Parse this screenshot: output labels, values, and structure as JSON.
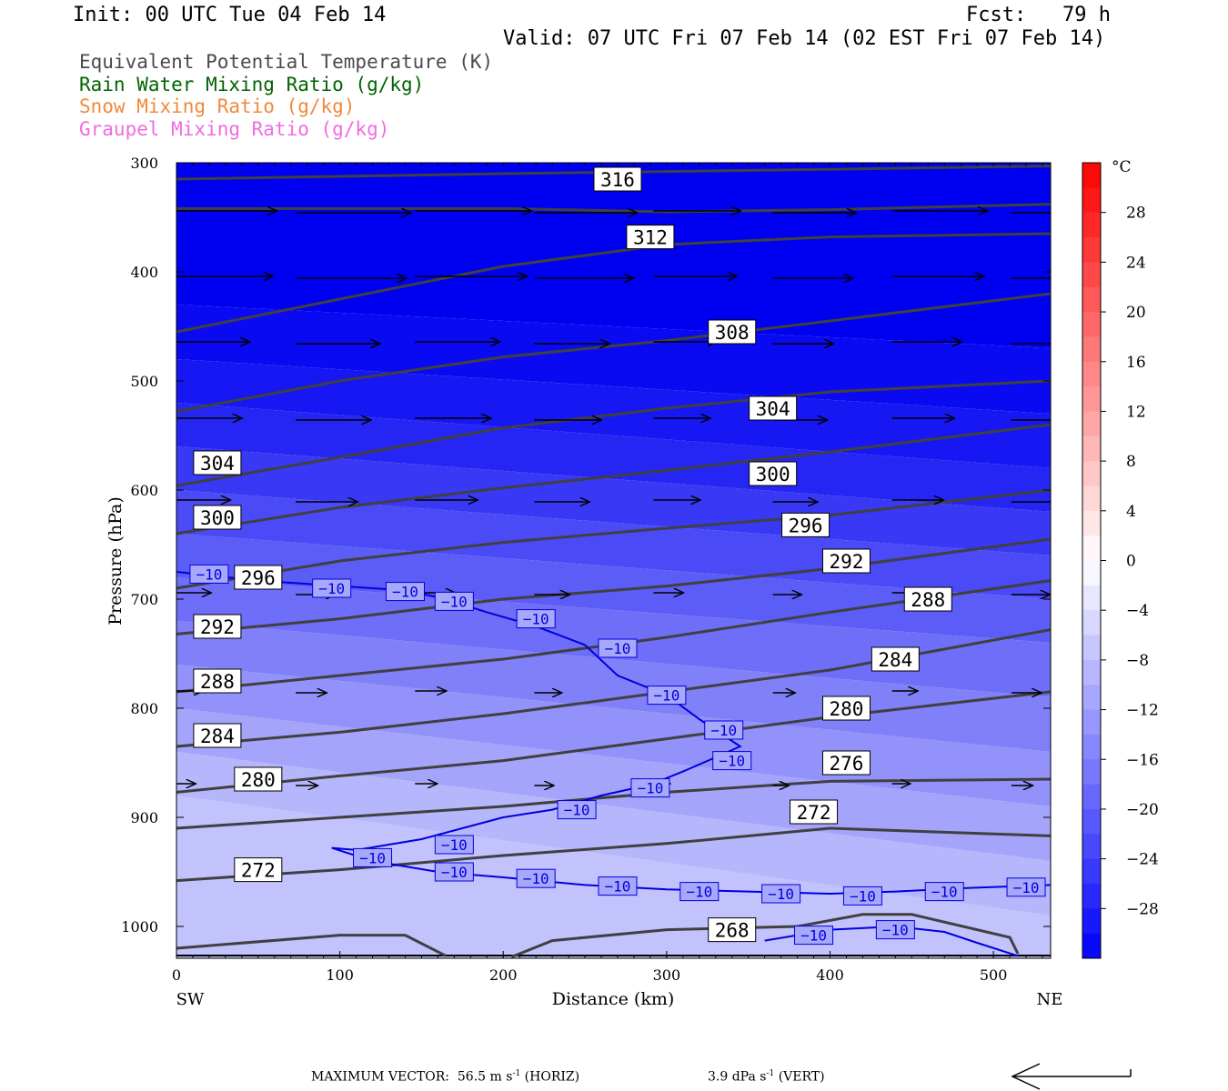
{
  "header": {
    "init": "Init: 00 UTC Tue 04 Feb 14",
    "fcst": "Fcst:   79 h",
    "valid": "Valid: 07 UTC Fri 07 Feb 14 (02 EST Fri 07 Feb 14)"
  },
  "legend": {
    "theta_e": "Equivalent Potential Temperature (K)",
    "rain": "Rain Water Mixing Ratio (g/kg)",
    "snow": "Snow Mixing Ratio (g/kg)",
    "graupel": "Graupel Mixing Ratio (g/kg)"
  },
  "footer": {
    "max_vector_label": "MAXIMUM VECTOR:",
    "horiz_value": "56.5",
    "horiz_unit": "m s",
    "horiz_exp": "-1",
    "horiz_tag": "(HORIZ)",
    "vert_value": "3.9",
    "vert_unit": "dPa s",
    "vert_exp": "-1",
    "vert_tag": "(VERT)"
  },
  "colors": {
    "theta_e_contour": "#404040",
    "isotherm": "#0000e0",
    "cold_fill": "#0000f0",
    "warm_fill": "#ff0000"
  },
  "chart_data": {
    "type": "cross-section",
    "xlabel": "Distance (km)",
    "ylabel": "Pressure (hPa)",
    "x_left_label": "SW",
    "x_right_label": "NE",
    "xlim": [
      0,
      535
    ],
    "ylim": [
      1030,
      300
    ],
    "x_ticks": [
      0,
      100,
      200,
      300,
      400,
      500
    ],
    "y_ticks": [
      300,
      400,
      500,
      600,
      700,
      800,
      900,
      1000
    ],
    "colorbar": {
      "unit": "°C",
      "tick_labels": [
        "28",
        "24",
        "20",
        "16",
        "12",
        "8",
        "4",
        "0",
        "−4",
        "−8",
        "−12",
        "−16",
        "−20",
        "−24",
        "−28"
      ],
      "min": -32,
      "max": 32,
      "interval": 2
    },
    "theta_e_contours": [
      {
        "value": 316,
        "points": [
          [
            0,
            315
          ],
          [
            200,
            310
          ],
          [
            400,
            306
          ],
          [
            535,
            303
          ]
        ]
      },
      {
        "value": 312,
        "points": [
          [
            0,
            342
          ],
          [
            100,
            342
          ],
          [
            200,
            342
          ],
          [
            300,
            345
          ],
          [
            400,
            343
          ],
          [
            535,
            338
          ]
        ]
      },
      {
        "value": 312,
        "points": [
          [
            0,
            455
          ],
          [
            100,
            425
          ],
          [
            200,
            395
          ],
          [
            300,
            375
          ],
          [
            400,
            368
          ],
          [
            535,
            365
          ]
        ]
      },
      {
        "value": 308,
        "points": [
          [
            0,
            528
          ],
          [
            100,
            500
          ],
          [
            200,
            478
          ],
          [
            300,
            463
          ],
          [
            400,
            445
          ],
          [
            535,
            420
          ]
        ]
      },
      {
        "value": 304,
        "points": [
          [
            0,
            596
          ],
          [
            100,
            570
          ],
          [
            200,
            543
          ],
          [
            300,
            525
          ],
          [
            400,
            510
          ],
          [
            535,
            500
          ]
        ]
      },
      {
        "value": 300,
        "points": [
          [
            0,
            640
          ],
          [
            100,
            616
          ],
          [
            200,
            598
          ],
          [
            300,
            582
          ],
          [
            400,
            565
          ],
          [
            535,
            540
          ]
        ]
      },
      {
        "value": 296,
        "points": [
          [
            0,
            690
          ],
          [
            100,
            665
          ],
          [
            200,
            648
          ],
          [
            300,
            635
          ],
          [
            400,
            623
          ],
          [
            535,
            600
          ]
        ]
      },
      {
        "value": 292,
        "points": [
          [
            0,
            732
          ],
          [
            100,
            718
          ],
          [
            200,
            700
          ],
          [
            300,
            688
          ],
          [
            400,
            672
          ],
          [
            535,
            645
          ]
        ]
      },
      {
        "value": 288,
        "points": [
          [
            0,
            785
          ],
          [
            100,
            770
          ],
          [
            200,
            755
          ],
          [
            300,
            735
          ],
          [
            400,
            712
          ],
          [
            535,
            683
          ]
        ]
      },
      {
        "value": 284,
        "points": [
          [
            0,
            835
          ],
          [
            100,
            822
          ],
          [
            200,
            805
          ],
          [
            300,
            785
          ],
          [
            400,
            765
          ],
          [
            535,
            728
          ]
        ]
      },
      {
        "value": 280,
        "points": [
          [
            0,
            877
          ],
          [
            100,
            862
          ],
          [
            200,
            848
          ],
          [
            300,
            828
          ],
          [
            400,
            808
          ],
          [
            535,
            785
          ]
        ]
      },
      {
        "value": 276,
        "points": [
          [
            0,
            910
          ],
          [
            100,
            900
          ],
          [
            200,
            890
          ],
          [
            300,
            877
          ],
          [
            400,
            867
          ],
          [
            535,
            865
          ]
        ]
      },
      {
        "value": 272,
        "points": [
          [
            0,
            958
          ],
          [
            100,
            948
          ],
          [
            200,
            935
          ],
          [
            300,
            924
          ],
          [
            400,
            910
          ],
          [
            535,
            917
          ]
        ]
      },
      {
        "value": 268,
        "points": [
          [
            0,
            1020
          ],
          [
            100,
            1008
          ],
          [
            140,
            1008
          ],
          [
            165,
            1027
          ]
        ]
      },
      {
        "value": 268,
        "points": [
          [
            205,
            1028
          ],
          [
            230,
            1013
          ],
          [
            300,
            1003
          ],
          [
            380,
            1000
          ],
          [
            420,
            989
          ],
          [
            450,
            989
          ],
          [
            510,
            1010
          ],
          [
            515,
            1025
          ]
        ]
      }
    ],
    "isotherm_minus10": {
      "value": -10,
      "points": [
        [
          0,
          675
        ],
        [
          50,
          683
        ],
        [
          100,
          688
        ],
        [
          140,
          692
        ],
        [
          165,
          700
        ],
        [
          190,
          712
        ],
        [
          220,
          725
        ],
        [
          250,
          742
        ],
        [
          270,
          770
        ],
        [
          300,
          788
        ],
        [
          320,
          810
        ],
        [
          345,
          835
        ],
        [
          330,
          845
        ],
        [
          310,
          858
        ],
        [
          290,
          870
        ],
        [
          260,
          880
        ],
        [
          230,
          893
        ],
        [
          200,
          900
        ],
        [
          150,
          920
        ],
        [
          110,
          930
        ],
        [
          95,
          928
        ],
        [
          120,
          940
        ],
        [
          160,
          950
        ],
        [
          200,
          955
        ],
        [
          250,
          962
        ],
        [
          300,
          966
        ],
        [
          350,
          968
        ],
        [
          400,
          970
        ],
        [
          440,
          968
        ],
        [
          480,
          965
        ],
        [
          535,
          962
        ]
      ]
    },
    "isotherm_labels": [
      "−10"
    ],
    "wind_vectors_note": "horizontal circulation vectors pointing NE"
  }
}
